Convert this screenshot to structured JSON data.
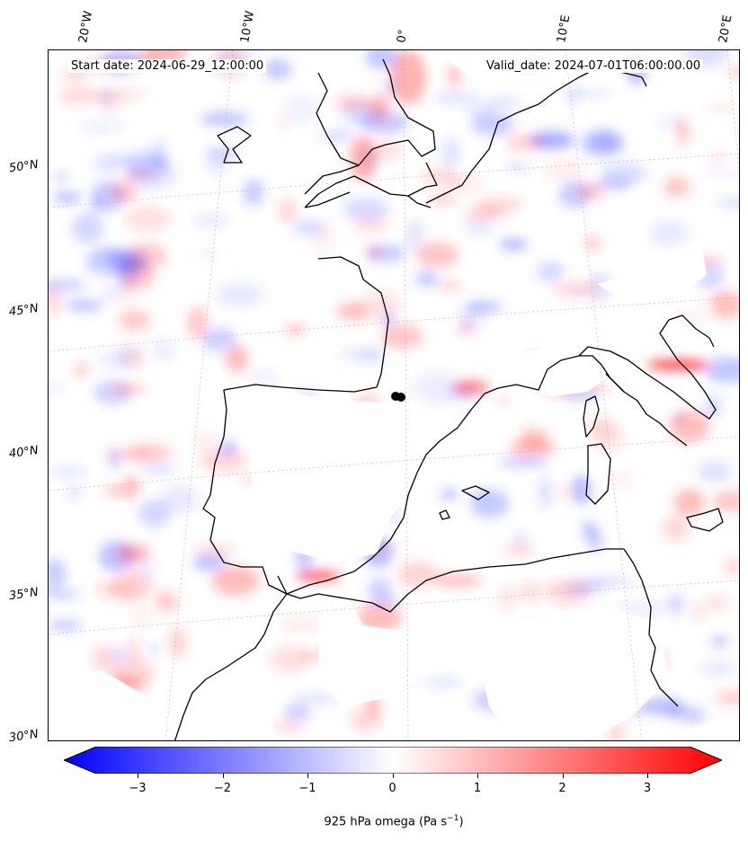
{
  "map": {
    "start_date": "Start date: 2024-06-29_12:00:00",
    "valid_date": "Valid_date: 2024-07-01T06:00:00.00",
    "lon_labels": [
      "20°W",
      "10°W",
      "0°",
      "10°E",
      "20°E"
    ],
    "lat_labels": [
      "50°N",
      "45°N",
      "40°N",
      "35°N",
      "30°N"
    ],
    "colors": {
      "negative": "#0000ff",
      "zero": "#ffffff",
      "positive": "#ff0000",
      "coast": "#000000",
      "grid": "#c8a8a8"
    }
  },
  "colorbar": {
    "label": "925 hPa omega (Pa s⁻¹)",
    "label_prefix": "925 hPa omega (Pa s",
    "label_exp": "−1",
    "label_suffix": ")",
    "ticks": [
      "−3",
      "−2",
      "−1",
      "0",
      "1",
      "2",
      "3"
    ],
    "range": [
      -3.7,
      3.7
    ]
  }
}
